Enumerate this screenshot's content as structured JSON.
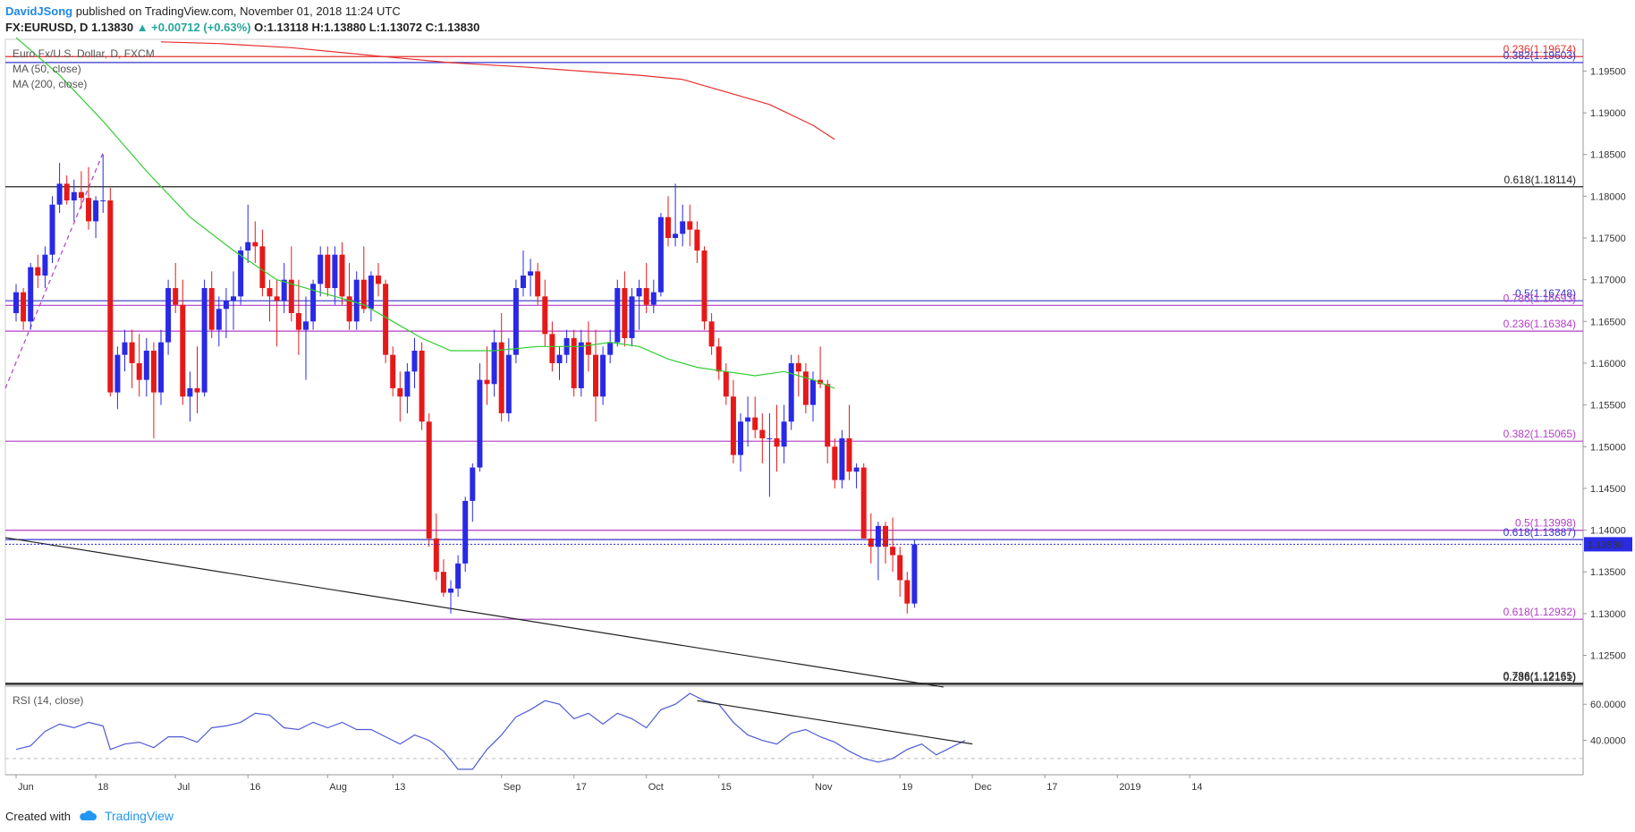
{
  "header": {
    "author": "DavidJSong",
    "published": "published on TradingView.com, November 01, 2018 11:24 UTC",
    "symbol": "FX:EURUSD, D",
    "price": "1.13830",
    "change": "▲ +0.00712 (+0.63%)",
    "ohlc": "O:1.13118 H:1.13880 L:1.13072 C:1.13830"
  },
  "legend": {
    "title": "Euro Fx/U.S. Dollar, D, FXCM",
    "ma50": "MA (50, close)",
    "ma200": "MA (200, close)",
    "rsi": "RSI (14, close)"
  },
  "footer": {
    "created_with": "Created with",
    "brand": "TradingView"
  },
  "colors": {
    "up": "#2929e6",
    "down": "#e61919",
    "ma50": "#33cc33",
    "ma200": "#e62e2e",
    "fib": "#b33cc7",
    "rsi": "#4f5bd5"
  },
  "chart_data": {
    "type": "candlestick",
    "price_axis": {
      "ylim": [
        1.1213,
        1.1988
      ],
      "ticks": [
        "1.19500",
        "1.19000",
        "1.18500",
        "1.18000",
        "1.17500",
        "1.17000",
        "1.16500",
        "1.16000",
        "1.15500",
        "1.15000",
        "1.14500",
        "1.14000",
        "1.13500",
        "1.13000",
        "1.12500"
      ],
      "current_price": "1.13830"
    },
    "rsi_axis": {
      "ylim": [
        21,
        70
      ],
      "ticks": [
        "60.0000",
        "40.0000"
      ]
    },
    "x_axis": {
      "ticks": [
        "Jun",
        "18",
        "Jul",
        "16",
        "Aug",
        "13",
        "Sep",
        "17",
        "Oct",
        "15",
        "Nov",
        "19",
        "Dec",
        "17",
        "2019",
        "14"
      ],
      "tick_bars": [
        0.5,
        11.5,
        22.5,
        32.5,
        43.5,
        52.5,
        67.5,
        77.5,
        87.5,
        97.5,
        110.5,
        122.5,
        132.5,
        142.5,
        152.5,
        162.5
      ]
    },
    "fib_levels": [
      {
        "label": "0.236(1.19674)",
        "value": 1.19674,
        "color": "#e62e2e"
      },
      {
        "label": "0.382(1.19603)",
        "value": 1.19603,
        "color": "#3333cc"
      },
      {
        "label": "0.618(1.18114)",
        "value": 1.18114,
        "color": "#222222"
      },
      {
        "label": "0.5(1.16748)",
        "value": 1.16748,
        "color": "#3333cc"
      },
      {
        "label": "0.786(1.16693)",
        "value": 1.16693,
        "color": "#b33cc7"
      },
      {
        "label": "0.236(1.16384)",
        "value": 1.16384,
        "color": "#b33cc7"
      },
      {
        "label": "0.382(1.15065)",
        "value": 1.15065,
        "color": "#b33cc7"
      },
      {
        "label": "0.5(1.13998)",
        "value": 1.13998,
        "color": "#b33cc7"
      },
      {
        "label": "0.618(1.13887)",
        "value": 1.13887,
        "color": "#3333cc"
      },
      {
        "label": "0.618(1.12932)",
        "value": 1.12932,
        "color": "#b33cc7"
      },
      {
        "label": "0.786(1.12165)",
        "value": 1.12165,
        "color": "#222222"
      },
      {
        "label": "0.236(1.12151)",
        "value": 1.12151,
        "color": "#222222"
      }
    ],
    "trendline": {
      "from": {
        "bar": 0,
        "price": 1.1391
      },
      "to": {
        "bar": 128,
        "price": 1.1212
      }
    },
    "candles": [
      [
        1.166,
        1.1695,
        1.165,
        1.1685
      ],
      [
        1.1685,
        1.169,
        1.164,
        1.165
      ],
      [
        1.165,
        1.172,
        1.164,
        1.1715
      ],
      [
        1.1715,
        1.173,
        1.169,
        1.1705
      ],
      [
        1.1705,
        1.174,
        1.169,
        1.173
      ],
      [
        1.173,
        1.18,
        1.172,
        1.179
      ],
      [
        1.179,
        1.184,
        1.178,
        1.1815
      ],
      [
        1.1815,
        1.1825,
        1.179,
        1.1795
      ],
      [
        1.1795,
        1.182,
        1.177,
        1.1805
      ],
      [
        1.1805,
        1.183,
        1.1785,
        1.1798
      ],
      [
        1.1798,
        1.1835,
        1.176,
        1.177
      ],
      [
        1.177,
        1.18,
        1.175,
        1.1795
      ],
      [
        1.1795,
        1.185,
        1.178,
        1.1795
      ],
      [
        1.1795,
        1.181,
        1.156,
        1.1565
      ],
      [
        1.1565,
        1.162,
        1.1545,
        1.161
      ],
      [
        1.161,
        1.164,
        1.159,
        1.1625
      ],
      [
        1.1625,
        1.164,
        1.157,
        1.16
      ],
      [
        1.16,
        1.1635,
        1.156,
        1.158
      ],
      [
        1.158,
        1.163,
        1.156,
        1.1615
      ],
      [
        1.1615,
        1.1625,
        1.151,
        1.1565
      ],
      [
        1.1565,
        1.164,
        1.155,
        1.1625
      ],
      [
        1.1625,
        1.17,
        1.161,
        1.169
      ],
      [
        1.169,
        1.172,
        1.166,
        1.167
      ],
      [
        1.167,
        1.17,
        1.155,
        1.156
      ],
      [
        1.156,
        1.159,
        1.153,
        1.157
      ],
      [
        1.157,
        1.162,
        1.154,
        1.1565
      ],
      [
        1.1565,
        1.17,
        1.156,
        1.169
      ],
      [
        1.169,
        1.171,
        1.163,
        1.164
      ],
      [
        1.164,
        1.168,
        1.162,
        1.1665
      ],
      [
        1.1665,
        1.169,
        1.163,
        1.1675
      ],
      [
        1.1675,
        1.171,
        1.164,
        1.168
      ],
      [
        1.168,
        1.174,
        1.167,
        1.1735
      ],
      [
        1.1735,
        1.179,
        1.172,
        1.1745
      ],
      [
        1.1745,
        1.177,
        1.172,
        1.174
      ],
      [
        1.174,
        1.176,
        1.168,
        1.169
      ],
      [
        1.169,
        1.17,
        1.165,
        1.168
      ],
      [
        1.168,
        1.17,
        1.162,
        1.1675
      ],
      [
        1.1675,
        1.172,
        1.166,
        1.17
      ],
      [
        1.17,
        1.174,
        1.165,
        1.166
      ],
      [
        1.166,
        1.17,
        1.161,
        1.164
      ],
      [
        1.164,
        1.168,
        1.158,
        1.165
      ],
      [
        1.165,
        1.17,
        1.164,
        1.1695
      ],
      [
        1.1695,
        1.174,
        1.168,
        1.173
      ],
      [
        1.173,
        1.174,
        1.168,
        1.169
      ],
      [
        1.169,
        1.174,
        1.167,
        1.173
      ],
      [
        1.173,
        1.1745,
        1.167,
        1.168
      ],
      [
        1.168,
        1.172,
        1.164,
        1.165
      ],
      [
        1.165,
        1.171,
        1.164,
        1.17
      ],
      [
        1.17,
        1.174,
        1.166,
        1.1665
      ],
      [
        1.1665,
        1.171,
        1.165,
        1.1705
      ],
      [
        1.1705,
        1.172,
        1.168,
        1.1695
      ],
      [
        1.1695,
        1.17,
        1.16,
        1.161
      ],
      [
        1.161,
        1.162,
        1.156,
        1.157
      ],
      [
        1.157,
        1.159,
        1.153,
        1.156
      ],
      [
        1.156,
        1.16,
        1.154,
        1.159
      ],
      [
        1.159,
        1.163,
        1.157,
        1.1615
      ],
      [
        1.1615,
        1.1625,
        1.152,
        1.153
      ],
      [
        1.153,
        1.154,
        1.138,
        1.139
      ],
      [
        1.139,
        1.142,
        1.134,
        1.135
      ],
      [
        1.135,
        1.1365,
        1.132,
        1.1325
      ],
      [
        1.1325,
        1.134,
        1.13,
        1.133
      ],
      [
        1.133,
        1.137,
        1.132,
        1.136
      ],
      [
        1.136,
        1.144,
        1.135,
        1.1435
      ],
      [
        1.1435,
        1.148,
        1.141,
        1.1475
      ],
      [
        1.1475,
        1.16,
        1.147,
        1.158
      ],
      [
        1.158,
        1.162,
        1.155,
        1.1575
      ],
      [
        1.1575,
        1.164,
        1.156,
        1.1625
      ],
      [
        1.1625,
        1.166,
        1.153,
        1.154
      ],
      [
        1.154,
        1.163,
        1.153,
        1.161
      ],
      [
        1.161,
        1.17,
        1.16,
        1.169
      ],
      [
        1.169,
        1.1735,
        1.168,
        1.1705
      ],
      [
        1.1705,
        1.1725,
        1.168,
        1.171
      ],
      [
        1.171,
        1.172,
        1.167,
        1.168
      ],
      [
        1.168,
        1.17,
        1.162,
        1.1635
      ],
      [
        1.1635,
        1.165,
        1.159,
        1.16
      ],
      [
        1.16,
        1.162,
        1.158,
        1.161
      ],
      [
        1.161,
        1.164,
        1.16,
        1.163
      ],
      [
        1.163,
        1.164,
        1.156,
        1.157
      ],
      [
        1.157,
        1.164,
        1.156,
        1.1625
      ],
      [
        1.1625,
        1.165,
        1.159,
        1.161
      ],
      [
        1.161,
        1.164,
        1.153,
        1.156
      ],
      [
        1.156,
        1.162,
        1.155,
        1.161
      ],
      [
        1.161,
        1.164,
        1.16,
        1.1625
      ],
      [
        1.1625,
        1.17,
        1.162,
        1.169
      ],
      [
        1.169,
        1.171,
        1.162,
        1.163
      ],
      [
        1.163,
        1.169,
        1.162,
        1.168
      ],
      [
        1.168,
        1.17,
        1.164,
        1.169
      ],
      [
        1.169,
        1.172,
        1.166,
        1.167
      ],
      [
        1.167,
        1.17,
        1.166,
        1.1685
      ],
      [
        1.1685,
        1.178,
        1.168,
        1.1775
      ],
      [
        1.1775,
        1.18,
        1.174,
        1.175
      ],
      [
        1.175,
        1.1815,
        1.174,
        1.1755
      ],
      [
        1.1755,
        1.179,
        1.174,
        1.177
      ],
      [
        1.177,
        1.179,
        1.174,
        1.176
      ],
      [
        1.176,
        1.177,
        1.172,
        1.1735
      ],
      [
        1.1735,
        1.174,
        1.164,
        1.165
      ],
      [
        1.165,
        1.166,
        1.161,
        1.162
      ],
      [
        1.162,
        1.163,
        1.158,
        1.159
      ],
      [
        1.159,
        1.16,
        1.155,
        1.156
      ],
      [
        1.156,
        1.158,
        1.148,
        1.149
      ],
      [
        1.149,
        1.154,
        1.147,
        1.153
      ],
      [
        1.153,
        1.156,
        1.15,
        1.1535
      ],
      [
        1.1535,
        1.156,
        1.151,
        1.152
      ],
      [
        1.152,
        1.154,
        1.148,
        1.151
      ],
      [
        1.151,
        1.154,
        1.144,
        1.151
      ],
      [
        1.151,
        1.155,
        1.147,
        1.15
      ],
      [
        1.15,
        1.155,
        1.148,
        1.153
      ],
      [
        1.153,
        1.161,
        1.152,
        1.16
      ],
      [
        1.16,
        1.161,
        1.156,
        1.159
      ],
      [
        1.159,
        1.16,
        1.154,
        1.155
      ],
      [
        1.155,
        1.159,
        1.153,
        1.158
      ],
      [
        1.158,
        1.162,
        1.157,
        1.1575
      ],
      [
        1.1575,
        1.158,
        1.148,
        1.15
      ],
      [
        1.15,
        1.151,
        1.145,
        1.146
      ],
      [
        1.146,
        1.152,
        1.145,
        1.151
      ],
      [
        1.151,
        1.155,
        1.146,
        1.147
      ],
      [
        1.147,
        1.148,
        1.145,
        1.1475
      ],
      [
        1.1475,
        1.148,
        1.139,
        1.139
      ],
      [
        1.139,
        1.142,
        1.136,
        1.138
      ],
      [
        1.138,
        1.141,
        1.134,
        1.1405
      ],
      [
        1.1405,
        1.141,
        1.136,
        1.138
      ],
      [
        1.138,
        1.1415,
        1.135,
        1.137
      ],
      [
        1.137,
        1.138,
        1.132,
        1.134
      ],
      [
        1.134,
        1.135,
        1.13,
        1.1312
      ],
      [
        1.1312,
        1.1388,
        1.1307,
        1.1383
      ]
    ],
    "ma50": [
      [
        0,
        1.199
      ],
      [
        6,
        1.1945
      ],
      [
        12,
        1.189
      ],
      [
        18,
        1.183
      ],
      [
        24,
        1.1775
      ],
      [
        30,
        1.1735
      ],
      [
        36,
        1.17
      ],
      [
        42,
        1.1685
      ],
      [
        48,
        1.167
      ],
      [
        52,
        1.165
      ],
      [
        56,
        1.163
      ],
      [
        60,
        1.1615
      ],
      [
        66,
        1.1615
      ],
      [
        72,
        1.162
      ],
      [
        78,
        1.162
      ],
      [
        82,
        1.1625
      ],
      [
        86,
        1.162
      ],
      [
        90,
        1.1605
      ],
      [
        94,
        1.1595
      ],
      [
        98,
        1.159
      ],
      [
        102,
        1.1585
      ],
      [
        106,
        1.159
      ],
      [
        110,
        1.158
      ],
      [
        113,
        1.157
      ]
    ],
    "ma200": [
      [
        20,
        1.1985
      ],
      [
        28,
        1.1983
      ],
      [
        38,
        1.1978
      ],
      [
        50,
        1.1968
      ],
      [
        60,
        1.196
      ],
      [
        70,
        1.1955
      ],
      [
        78,
        1.195
      ],
      [
        86,
        1.1945
      ],
      [
        92,
        1.194
      ],
      [
        98,
        1.1925
      ],
      [
        104,
        1.191
      ],
      [
        110,
        1.1885
      ],
      [
        113,
        1.1868
      ]
    ],
    "rsi": [
      [
        0,
        35
      ],
      [
        2,
        37
      ],
      [
        4,
        45
      ],
      [
        6,
        49
      ],
      [
        8,
        47
      ],
      [
        10,
        50
      ],
      [
        12,
        48
      ],
      [
        13,
        35
      ],
      [
        15,
        38
      ],
      [
        17,
        39
      ],
      [
        19,
        36
      ],
      [
        21,
        42
      ],
      [
        23,
        42
      ],
      [
        25,
        39
      ],
      [
        27,
        47
      ],
      [
        29,
        48
      ],
      [
        31,
        50
      ],
      [
        33,
        55
      ],
      [
        35,
        54
      ],
      [
        37,
        47
      ],
      [
        39,
        46
      ],
      [
        41,
        50
      ],
      [
        43,
        47
      ],
      [
        45,
        50
      ],
      [
        47,
        46
      ],
      [
        49,
        46
      ],
      [
        51,
        42
      ],
      [
        53,
        38
      ],
      [
        55,
        43
      ],
      [
        57,
        40
      ],
      [
        59,
        34
      ],
      [
        61,
        24
      ],
      [
        63,
        24
      ],
      [
        65,
        35
      ],
      [
        67,
        43
      ],
      [
        69,
        53
      ],
      [
        71,
        57
      ],
      [
        73,
        62
      ],
      [
        75,
        60
      ],
      [
        77,
        52
      ],
      [
        79,
        55
      ],
      [
        81,
        49
      ],
      [
        83,
        55
      ],
      [
        85,
        52
      ],
      [
        87,
        47
      ],
      [
        89,
        57
      ],
      [
        91,
        60
      ],
      [
        93,
        66
      ],
      [
        95,
        62
      ],
      [
        97,
        60
      ],
      [
        99,
        50
      ],
      [
        101,
        43
      ],
      [
        103,
        40
      ],
      [
        105,
        38
      ],
      [
        107,
        44
      ],
      [
        109,
        46
      ],
      [
        111,
        42
      ],
      [
        113,
        39
      ],
      [
        115,
        34
      ],
      [
        117,
        30
      ],
      [
        119,
        28
      ],
      [
        121,
        30
      ],
      [
        123,
        35
      ],
      [
        125,
        38
      ],
      [
        127,
        32
      ],
      [
        129,
        36
      ],
      [
        131,
        40
      ]
    ],
    "rsi_trendline": {
      "from": {
        "bar": 94,
        "value": 62
      },
      "to": {
        "bar": 132,
        "value": 38
      }
    }
  }
}
